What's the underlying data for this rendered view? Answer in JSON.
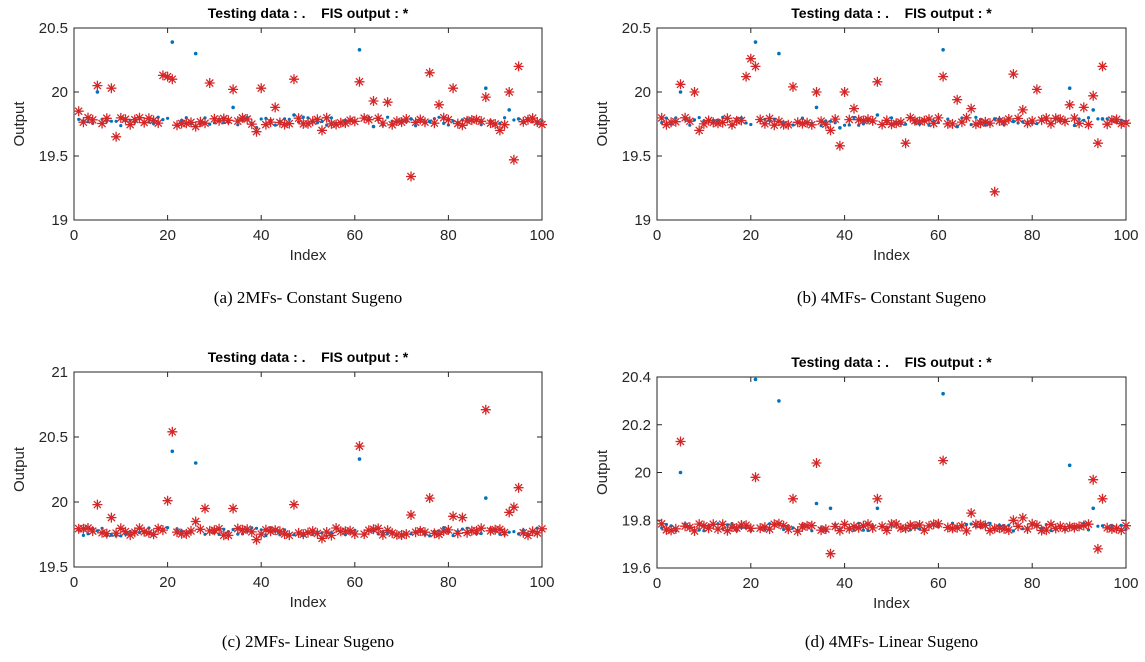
{
  "chart_data": [
    {
      "type": "scatter",
      "title": "Testing data : .    FIS output : *",
      "caption": "(a) 2MFs- Constant Sugeno",
      "xlabel": "Index",
      "ylabel": "Output",
      "xlim": [
        0,
        100
      ],
      "ylim": [
        19,
        20.5
      ],
      "xticks": [
        0,
        20,
        40,
        60,
        80,
        100
      ],
      "yticks": [
        19,
        19.5,
        20,
        20.5
      ],
      "baseline": 19.77,
      "series": [
        {
          "name": "Testing data",
          "marker": "dot",
          "color": "#0072BD",
          "x": [
            5,
            21,
            26,
            34,
            39,
            47,
            61,
            64,
            72,
            76,
            88,
            93,
            95
          ],
          "y": [
            20.0,
            20.39,
            20.3,
            19.88,
            19.72,
            19.82,
            20.33,
            19.73,
            19.79,
            19.77,
            20.03,
            19.86,
            19.79
          ]
        },
        {
          "name": "FIS output",
          "marker": "star",
          "color": "#D62728",
          "x": [
            1,
            3,
            5,
            8,
            9,
            19,
            20,
            21,
            26,
            29,
            34,
            39,
            40,
            43,
            47,
            53,
            61,
            64,
            67,
            72,
            76,
            78,
            81,
            88,
            91,
            93,
            94,
            95
          ],
          "y": [
            19.85,
            19.8,
            20.05,
            20.03,
            19.65,
            20.13,
            20.12,
            20.1,
            19.73,
            20.07,
            20.02,
            19.69,
            20.03,
            19.88,
            20.1,
            19.7,
            20.08,
            19.93,
            19.92,
            19.34,
            20.15,
            19.9,
            20.03,
            19.96,
            19.7,
            20.0,
            19.47,
            20.2
          ]
        }
      ]
    },
    {
      "type": "scatter",
      "title": "Testing data : .    FIS output : *",
      "caption": "(b) 4MFs- Constant Sugeno",
      "xlabel": "Index",
      "ylabel": "Output",
      "xlim": [
        0,
        100
      ],
      "ylim": [
        19,
        20.5
      ],
      "xticks": [
        0,
        20,
        40,
        60,
        80,
        100
      ],
      "yticks": [
        19,
        19.5,
        20,
        20.5
      ],
      "baseline": 19.77,
      "series": [
        {
          "name": "Testing data",
          "marker": "dot",
          "color": "#0072BD",
          "x": [
            5,
            21,
            26,
            34,
            39,
            47,
            61,
            64,
            72,
            76,
            88,
            93,
            95
          ],
          "y": [
            20.0,
            20.39,
            20.3,
            19.88,
            19.72,
            19.82,
            20.33,
            19.73,
            19.79,
            19.77,
            20.03,
            19.86,
            19.79
          ]
        },
        {
          "name": "FIS output",
          "marker": "star",
          "color": "#D62728",
          "x": [
            5,
            8,
            9,
            19,
            20,
            21,
            29,
            34,
            37,
            39,
            40,
            42,
            47,
            53,
            61,
            64,
            67,
            72,
            76,
            78,
            81,
            88,
            91,
            93,
            94,
            95
          ],
          "y": [
            20.06,
            20.0,
            19.7,
            20.12,
            20.26,
            20.2,
            20.04,
            20.0,
            19.7,
            19.58,
            20.0,
            19.87,
            20.08,
            19.6,
            20.12,
            19.94,
            19.87,
            19.22,
            20.14,
            19.86,
            20.02,
            19.9,
            19.88,
            19.97,
            19.6,
            20.2
          ]
        }
      ]
    },
    {
      "type": "scatter",
      "title": "Testing data : .    FIS output : *",
      "caption": "(c) 2MFs- Linear Sugeno",
      "xlabel": "Index",
      "ylabel": "Output",
      "xlim": [
        0,
        100
      ],
      "ylim": [
        19.5,
        21
      ],
      "xticks": [
        0,
        20,
        40,
        60,
        80,
        100
      ],
      "yticks": [
        19.5,
        20,
        20.5,
        21
      ],
      "baseline": 19.77,
      "series": [
        {
          "name": "Testing data",
          "marker": "dot",
          "color": "#0072BD",
          "x": [
            21,
            26,
            61,
            88
          ],
          "y": [
            20.39,
            20.3,
            20.33,
            20.03
          ]
        },
        {
          "name": "FIS output",
          "marker": "star",
          "color": "#D62728",
          "x": [
            5,
            8,
            20,
            21,
            26,
            28,
            34,
            39,
            47,
            53,
            61,
            72,
            76,
            81,
            83,
            88,
            93,
            94,
            95
          ],
          "y": [
            19.98,
            19.88,
            20.01,
            20.54,
            19.85,
            19.95,
            19.95,
            19.71,
            19.98,
            19.72,
            20.43,
            19.9,
            20.03,
            19.89,
            19.88,
            20.71,
            19.92,
            19.96,
            20.11
          ]
        }
      ]
    },
    {
      "type": "scatter",
      "title": "Testing data : .    FIS output : *",
      "caption": "(d) 4MFs- Linear Sugeno",
      "xlabel": "Index",
      "ylabel": "Output",
      "xlim": [
        0,
        100
      ],
      "ylim": [
        19.6,
        20.4
      ],
      "xticks": [
        0,
        20,
        40,
        60,
        80,
        100
      ],
      "yticks": [
        19.6,
        19.8,
        20,
        20.2,
        20.4
      ],
      "baseline": 19.77,
      "series": [
        {
          "name": "Testing data",
          "marker": "dot",
          "color": "#0072BD",
          "x": [
            5,
            21,
            26,
            34,
            37,
            47,
            61,
            88,
            93
          ],
          "y": [
            20.0,
            20.39,
            20.3,
            19.87,
            19.85,
            19.85,
            20.33,
            20.03,
            19.85
          ]
        },
        {
          "name": "FIS output",
          "marker": "star",
          "color": "#D62728",
          "x": [
            5,
            21,
            29,
            34,
            37,
            47,
            61,
            67,
            76,
            78,
            93,
            94,
            95
          ],
          "y": [
            20.13,
            19.98,
            19.89,
            20.04,
            19.66,
            19.89,
            20.05,
            19.83,
            19.8,
            19.81,
            19.97,
            19.68,
            19.89
          ]
        }
      ]
    }
  ]
}
